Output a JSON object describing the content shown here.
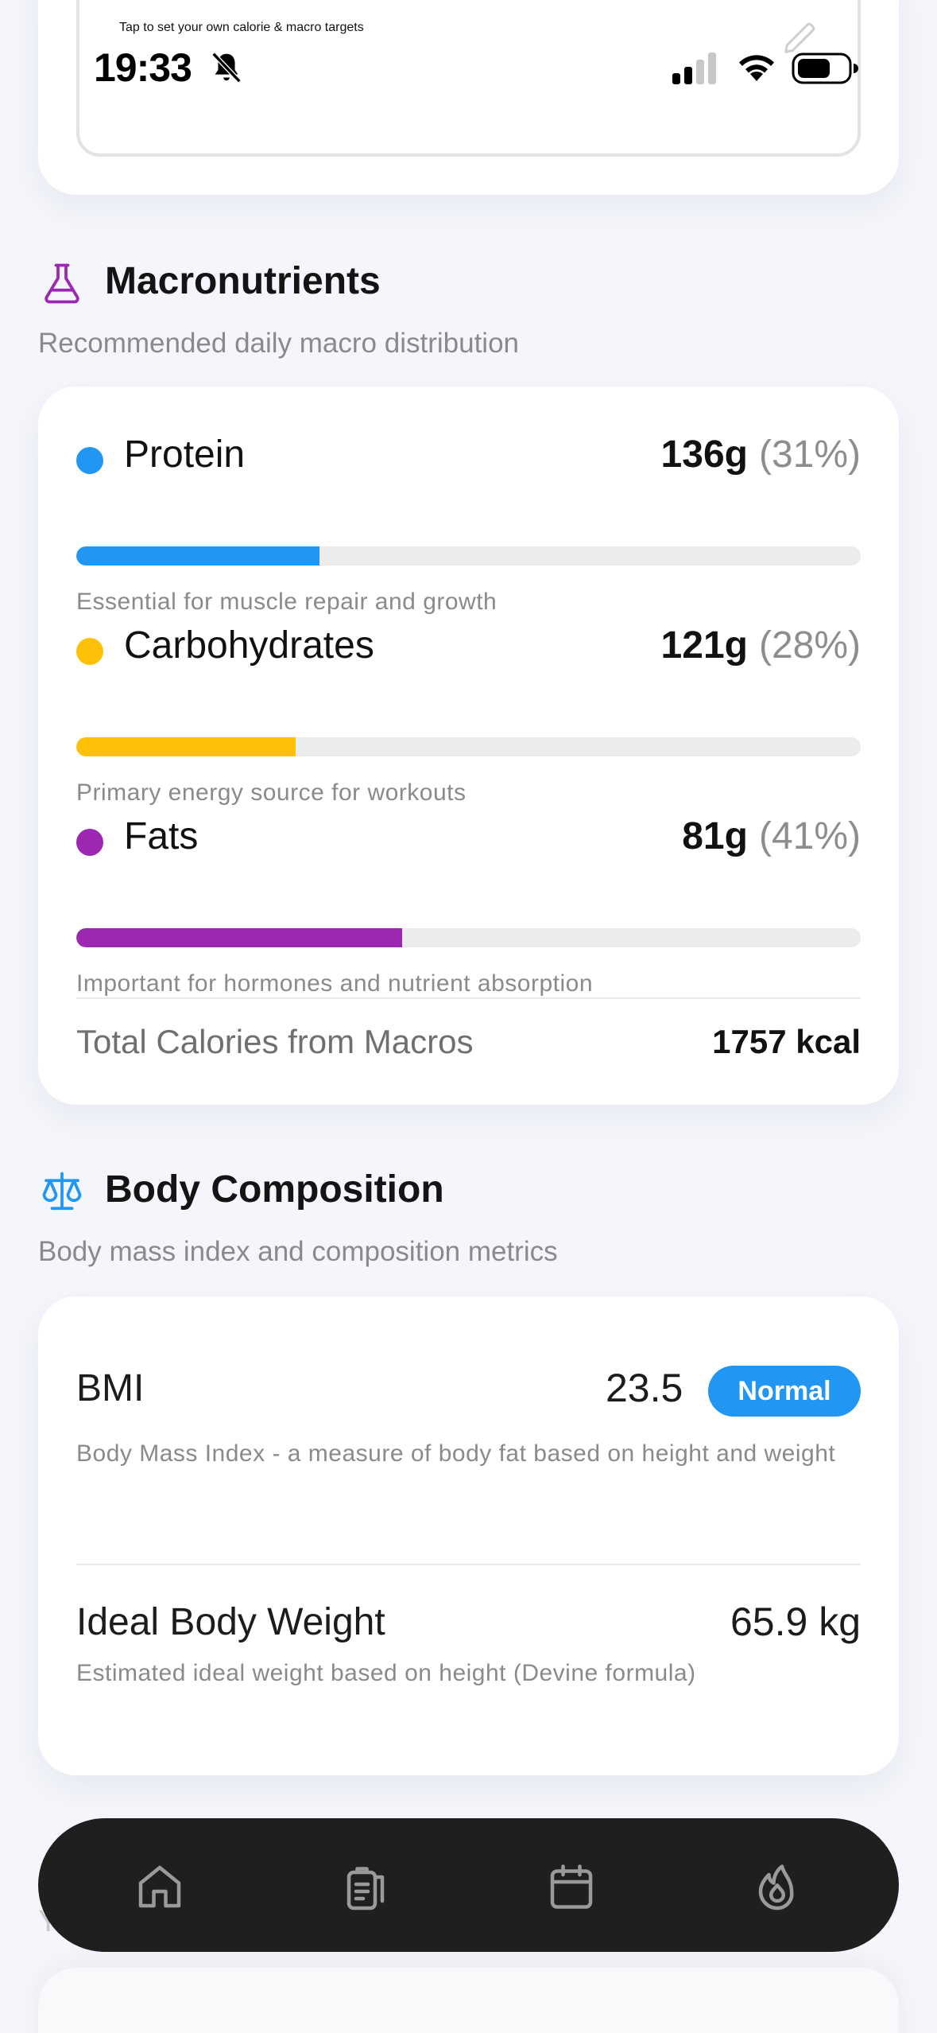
{
  "status_bar": {
    "time": "19:33"
  },
  "targets_card": {
    "hint": "Tap to set your own calorie & macro targets"
  },
  "macronutrients": {
    "title": "Macronutrients",
    "subtitle": "Recommended daily macro distribution",
    "items": [
      {
        "name": "Protein",
        "grams": "136g",
        "percent": "(31%)",
        "fill_fraction": 0.31,
        "color": "#2196f3",
        "description": "Essential for muscle repair and growth"
      },
      {
        "name": "Carbohydrates",
        "grams": "121g",
        "percent": "(28%)",
        "fill_fraction": 0.28,
        "color": "#ffc107",
        "description": "Primary energy source for workouts"
      },
      {
        "name": "Fats",
        "grams": "81g",
        "percent": "(41%)",
        "fill_fraction": 0.415,
        "color": "#9c27b0",
        "description": "Important for hormones and nutrient absorption"
      }
    ],
    "total_label": "Total Calories from Macros",
    "total_value": "1757 kcal"
  },
  "body_composition": {
    "title": "Body Composition",
    "subtitle": "Body mass index and composition metrics",
    "bmi": {
      "label": "BMI",
      "value": "23.5",
      "badge": "Normal",
      "badge_color": "#2196f3",
      "description": "Body Mass Index - a measure of body fat based on height and weight"
    },
    "ideal_weight": {
      "label": "Ideal Body Weight",
      "value": "65.9 kg",
      "description": "Estimated ideal weight based on height (Devine formula)"
    }
  },
  "bottom_nav": {
    "items": [
      {
        "icon": "home-icon"
      },
      {
        "icon": "clipboard-icon"
      },
      {
        "icon": "calendar-icon"
      },
      {
        "icon": "flame-icon"
      }
    ]
  },
  "peek_text": "Y"
}
